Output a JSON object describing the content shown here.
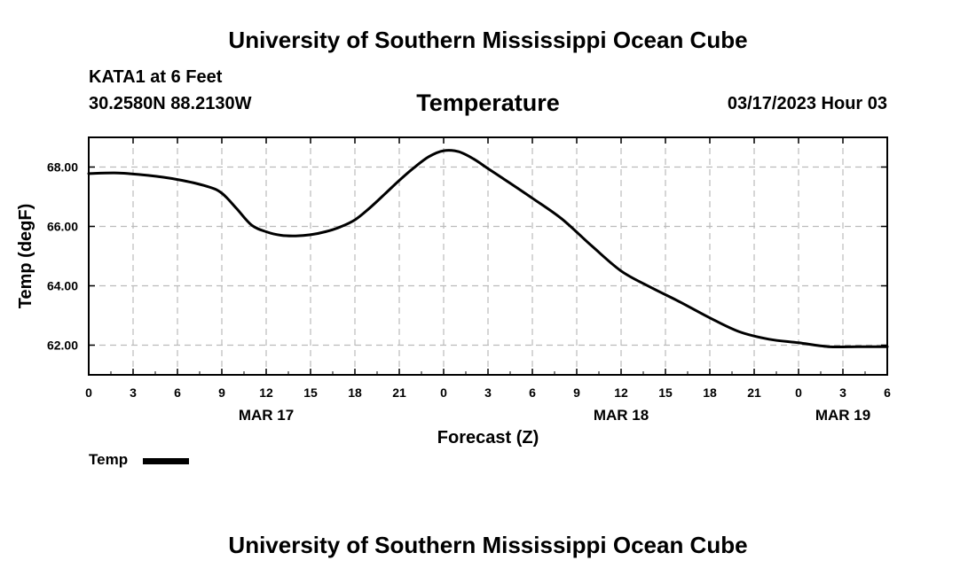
{
  "header": {
    "title": "University of Southern Mississippi Ocean Cube",
    "station": "KATA1 at 6 Feet",
    "coords": "30.2580N  88.2130W",
    "chart_title": "Temperature",
    "datetime": "03/17/2023 Hour 03"
  },
  "footer": {
    "title": "University of Southern Mississippi Ocean Cube"
  },
  "legend": {
    "label": "Temp",
    "color": "#000000"
  },
  "chart_data": {
    "type": "line",
    "title": "Temperature",
    "xlabel": "Forecast (Z)",
    "ylabel": "Temp (degF)",
    "xlim": [
      0,
      54
    ],
    "ylim": [
      61.0,
      69.0
    ],
    "grid": true,
    "legend_position": "bottom-left",
    "x_ticks": [
      0,
      3,
      6,
      9,
      12,
      15,
      18,
      21,
      24,
      27,
      30,
      33,
      36,
      39,
      42,
      45,
      48,
      51,
      54
    ],
    "x_tick_labels": [
      "0",
      "3",
      "6",
      "9",
      "12",
      "15",
      "18",
      "21",
      "0",
      "3",
      "6",
      "9",
      "12",
      "15",
      "18",
      "21",
      "0",
      "3",
      "6"
    ],
    "date_labels": [
      {
        "x": 12,
        "label": "MAR 17"
      },
      {
        "x": 36,
        "label": "MAR 18"
      },
      {
        "x": 51,
        "label": "MAR 19"
      }
    ],
    "y_ticks": [
      62,
      64,
      66,
      68
    ],
    "y_tick_labels": [
      "62.00",
      "64.00",
      "66.00",
      "68.00"
    ],
    "series": [
      {
        "name": "Temp",
        "x": [
          0,
          2,
          4,
          6,
          8,
          9,
          10,
          11,
          12,
          13,
          14,
          15,
          16,
          17,
          18,
          19,
          20,
          21,
          22,
          23,
          24,
          25,
          26,
          27,
          28,
          30,
          32,
          34,
          36,
          38,
          40,
          42,
          44,
          46,
          48,
          50,
          52,
          54
        ],
        "values": [
          67.78,
          67.8,
          67.72,
          67.58,
          67.35,
          67.12,
          66.6,
          66.05,
          65.82,
          65.7,
          65.68,
          65.72,
          65.82,
          65.98,
          66.22,
          66.62,
          67.08,
          67.55,
          67.98,
          68.35,
          68.55,
          68.52,
          68.28,
          67.95,
          67.62,
          66.95,
          66.25,
          65.35,
          64.5,
          63.95,
          63.45,
          62.92,
          62.45,
          62.2,
          62.08,
          61.95,
          61.95,
          61.95
        ]
      }
    ]
  }
}
